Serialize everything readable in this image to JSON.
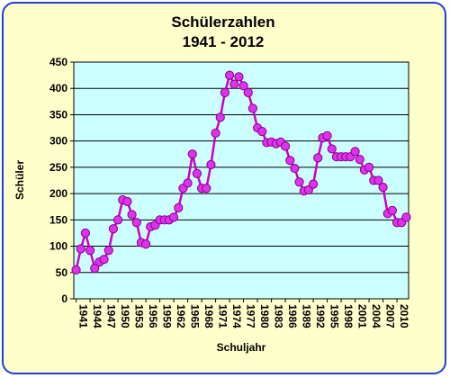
{
  "chart_data": {
    "type": "line",
    "title": "Schülerzahlen",
    "subtitle": "1941 - 2012",
    "xlabel": "Schuljahr",
    "ylabel": "Schüler",
    "ylim": [
      0,
      450
    ],
    "yticks": [
      0,
      50,
      100,
      150,
      200,
      250,
      300,
      350,
      400,
      450
    ],
    "xtick_labels": [
      "1941",
      "1944",
      "1947",
      "1950",
      "1953",
      "1956",
      "1959",
      "1962",
      "1965",
      "1968",
      "1971",
      "1974",
      "1977",
      "1980",
      "1983",
      "1986",
      "1989",
      "1992",
      "1995",
      "1998",
      "2001",
      "2004",
      "2007",
      "2010"
    ],
    "grid": "horizontal",
    "colors": {
      "line": "#cc00cc",
      "marker": "#dd33ee",
      "plot_bg": "#ccffff",
      "frame_border": "#1f3fd6",
      "frame_bg": "#ffffcc"
    },
    "x": [
      1941,
      1942,
      1943,
      1944,
      1945,
      1946,
      1947,
      1948,
      1949,
      1950,
      1951,
      1952,
      1953,
      1954,
      1955,
      1956,
      1957,
      1958,
      1959,
      1960,
      1961,
      1962,
      1963,
      1964,
      1965,
      1966,
      1967,
      1968,
      1969,
      1970,
      1971,
      1972,
      1973,
      1974,
      1975,
      1976,
      1977,
      1978,
      1979,
      1980,
      1981,
      1982,
      1983,
      1984,
      1985,
      1986,
      1987,
      1988,
      1989,
      1990,
      1991,
      1992,
      1993,
      1994,
      1995,
      1996,
      1997,
      1998,
      1999,
      2000,
      2001,
      2002,
      2003,
      2004,
      2005,
      2006,
      2007,
      2008,
      2009,
      2010,
      2011,
      2012
    ],
    "series": [
      {
        "values": [
          55,
          95,
          125,
          92,
          58,
          70,
          75,
          92,
          133,
          150,
          188,
          185,
          160,
          145,
          107,
          104,
          137,
          140,
          150,
          150,
          150,
          155,
          173,
          210,
          220,
          275,
          238,
          210,
          210,
          255,
          315,
          345,
          392,
          425,
          408,
          422,
          405,
          392,
          362,
          325,
          318,
          297,
          298,
          295,
          298,
          290,
          263,
          248,
          222,
          205,
          207,
          218,
          268,
          306,
          310,
          285,
          270,
          270,
          270,
          270,
          280,
          265,
          245,
          250,
          225,
          225,
          212,
          162,
          168,
          145,
          145,
          155
        ]
      }
    ]
  }
}
